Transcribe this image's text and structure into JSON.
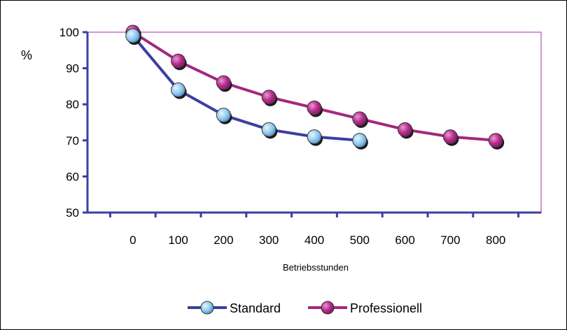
{
  "chart_data": {
    "type": "line",
    "title": "",
    "xlabel": "Betriebsstunden",
    "ylabel": "%",
    "x_ticks": [
      0,
      100,
      200,
      300,
      400,
      500,
      600,
      700,
      800
    ],
    "y_ticks": [
      50,
      60,
      70,
      80,
      90,
      100
    ],
    "xlim": [
      -100,
      900
    ],
    "ylim": [
      50,
      100
    ],
    "grid": false,
    "legend_position": "bottom",
    "series": [
      {
        "name": "Standard",
        "color": "#3b3fa0",
        "marker_color": "#8ec9ee",
        "x": [
          0,
          100,
          200,
          300,
          400,
          500
        ],
        "y": [
          99,
          84,
          77,
          73,
          71,
          70
        ]
      },
      {
        "name": "Professionell",
        "color": "#a3287e",
        "marker_color": "#b62c8c",
        "x": [
          0,
          100,
          200,
          300,
          400,
          500,
          600,
          700,
          800
        ],
        "y": [
          100,
          92,
          86,
          82,
          79,
          76,
          73,
          71,
          70
        ]
      }
    ],
    "plot_border_color": "#c471c4",
    "axis_color": "#3b3fa0"
  }
}
